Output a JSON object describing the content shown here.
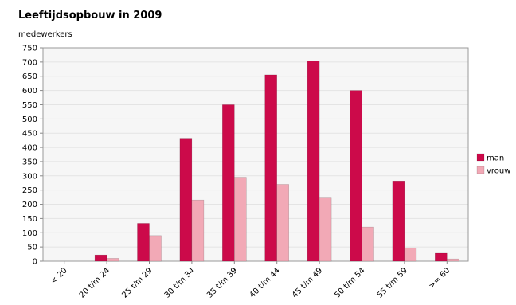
{
  "chart_data": {
    "type": "bar",
    "title": "Leeftijdsopbouw in 2009",
    "ylabel": "medewerkers",
    "xlabel": "",
    "ylim": [
      0,
      750
    ],
    "yticks": [
      0,
      50,
      100,
      150,
      200,
      250,
      300,
      350,
      400,
      450,
      500,
      550,
      600,
      650,
      700,
      750
    ],
    "categories": [
      "< 20",
      "20 t/m 24",
      "25 t/m 29",
      "30 t/m 34",
      "35 t/m 39",
      "40 t/m 44",
      "45 t/m 49",
      "50 t/m 54",
      "55 t/m 59",
      ">= 60"
    ],
    "series": [
      {
        "name": "man",
        "color": "#cc0a4a",
        "values": [
          0,
          22,
          133,
          432,
          550,
          655,
          703,
          600,
          282,
          28
        ]
      },
      {
        "name": "vrouw",
        "color": "#f2a9b6",
        "values": [
          0,
          10,
          90,
          215,
          295,
          270,
          222,
          120,
          47,
          8
        ]
      }
    ],
    "grid": true,
    "legend": "right"
  }
}
